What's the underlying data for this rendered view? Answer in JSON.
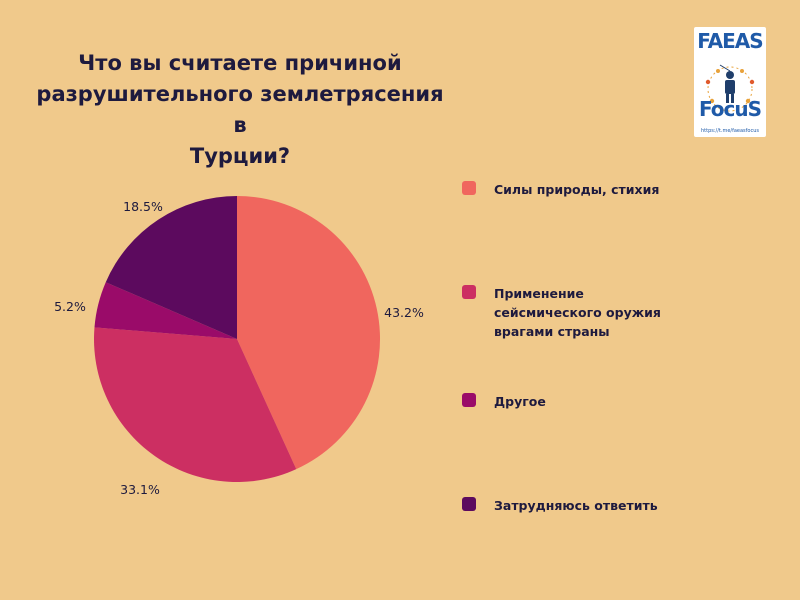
{
  "chart_data": {
    "type": "pie",
    "title_lines": [
      "Что вы считаете причиной",
      "разрушительного землетрясения в",
      "Турции?"
    ],
    "slices": [
      {
        "label": "Силы природы, стихия",
        "value": 43.2,
        "display": "43.2%",
        "color": "#F0665E"
      },
      {
        "label": "Применение сейсмического оружия врагами страны",
        "value": 33.1,
        "display": "33.1%",
        "color": "#CC2F62"
      },
      {
        "label": "Другое",
        "value": 5.2,
        "display": "5.2%",
        "color": "#9A0B69"
      },
      {
        "label": "Затрудняюсь ответить",
        "value": 18.5,
        "display": "18.5%",
        "color": "#5C0A5E"
      }
    ],
    "legend_position": "right"
  },
  "logo": {
    "word_top": "FAEAS",
    "word_bottom": "FocuS",
    "url": "https://t.me/faeasfocus",
    "color": "#1F5AA8"
  }
}
